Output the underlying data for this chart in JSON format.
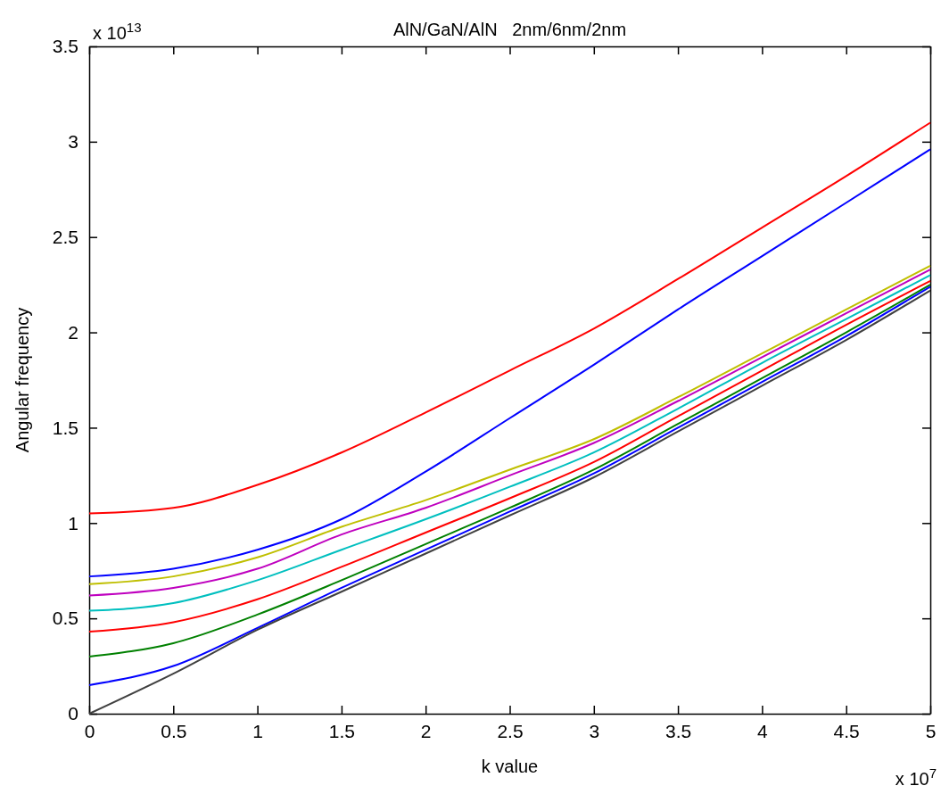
{
  "chart_data": {
    "type": "line",
    "title": "AlN/GaN/AlN   2nm/6nm/2nm",
    "xlabel": "k value",
    "ylabel": "Angular frequency",
    "annotations": [
      "x 10$^{13}$",
      "x 10$^{7}$"
    ],
    "x": [
      0,
      0.5,
      1,
      1.5,
      2,
      2.5,
      3,
      3.5,
      4,
      4.5,
      5
    ],
    "xlim": [
      0,
      5
    ],
    "xticks": [
      0,
      0.5,
      1,
      1.5,
      2,
      2.5,
      3,
      3.5,
      4,
      4.5,
      5
    ],
    "ylim": [
      0,
      3.5
    ],
    "yticks": [
      0,
      0.5,
      1,
      1.5,
      2,
      2.5,
      3,
      3.5
    ],
    "grid": false,
    "line_style": "solid",
    "series": [
      {
        "color": "#ff0000",
        "values": [
          1.05,
          1.08,
          1.2,
          1.37,
          1.58,
          1.8,
          2.02,
          2.28,
          2.55,
          2.82,
          3.1
        ]
      },
      {
        "color": "#0000ff",
        "values": [
          0.72,
          0.76,
          0.86,
          1.02,
          1.27,
          1.55,
          1.83,
          2.12,
          2.4,
          2.68,
          2.96
        ]
      },
      {
        "color": "#bfbf00",
        "values": [
          0.68,
          0.72,
          0.82,
          0.98,
          1.12,
          1.28,
          1.44,
          1.66,
          1.89,
          2.12,
          2.35
        ]
      },
      {
        "color": "#bf00bf",
        "values": [
          0.62,
          0.66,
          0.76,
          0.94,
          1.08,
          1.25,
          1.42,
          1.64,
          1.87,
          2.1,
          2.33
        ]
      },
      {
        "color": "#00bfbf",
        "values": [
          0.54,
          0.58,
          0.7,
          0.86,
          1.02,
          1.19,
          1.37,
          1.6,
          1.84,
          2.07,
          2.3
        ]
      },
      {
        "color": "#ff0000",
        "values": [
          0.43,
          0.48,
          0.6,
          0.77,
          0.95,
          1.13,
          1.32,
          1.56,
          1.8,
          2.04,
          2.27
        ]
      },
      {
        "color": "#008000",
        "values": [
          0.3,
          0.37,
          0.52,
          0.7,
          0.89,
          1.08,
          1.28,
          1.52,
          1.76,
          2.0,
          2.25
        ]
      },
      {
        "color": "#0000ff",
        "values": [
          0.15,
          0.25,
          0.45,
          0.66,
          0.86,
          1.06,
          1.26,
          1.5,
          1.74,
          1.98,
          2.24
        ]
      },
      {
        "color": "#404040",
        "values": [
          0,
          0.21,
          0.44,
          0.64,
          0.84,
          1.04,
          1.24,
          1.48,
          1.72,
          1.96,
          2.22
        ]
      }
    ]
  }
}
